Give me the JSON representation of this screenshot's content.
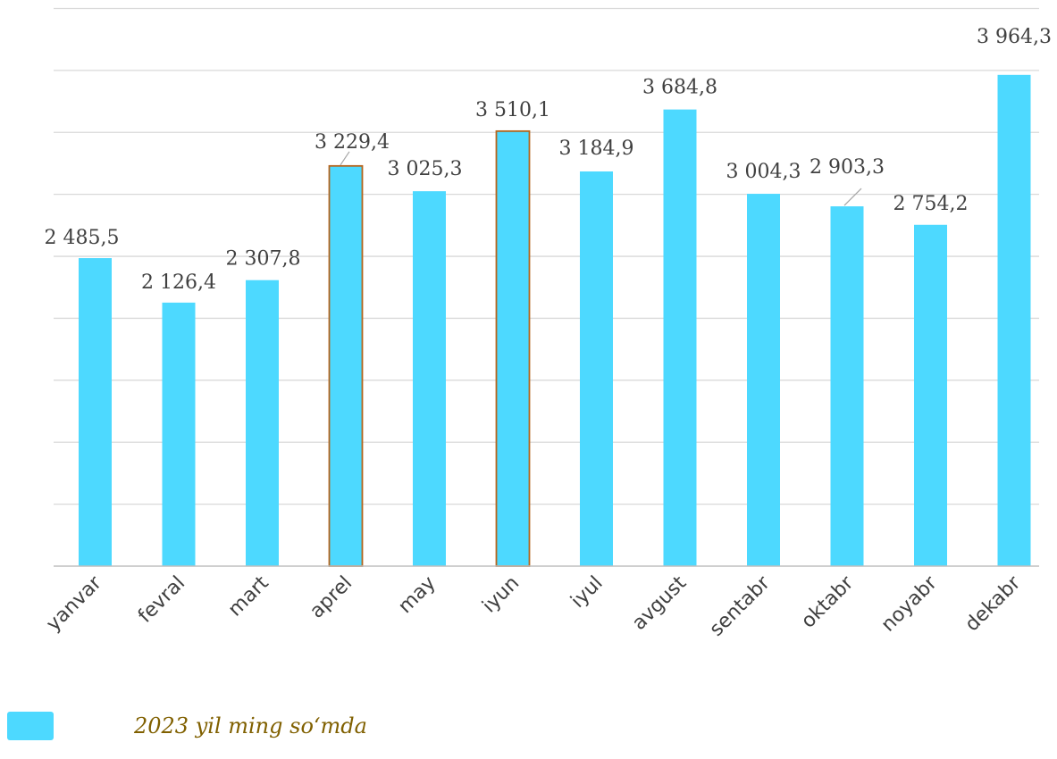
{
  "chart_data": {
    "type": "bar",
    "categories": [
      "yanvar",
      "fevral",
      "mart",
      "aprel",
      "may",
      "iyun",
      "iyul",
      "avgust",
      "sentabr",
      "oktabr",
      "noyabr",
      "dekabr"
    ],
    "series": [
      {
        "name": "2023 yil ming so‘mda",
        "values": [
          2485.5,
          2126.4,
          2307.8,
          3229.4,
          3025.3,
          3510.1,
          3184.9,
          3684.8,
          3004.3,
          2903.3,
          2754.2,
          3964.3
        ]
      }
    ],
    "value_labels": [
      "2 485,5",
      "2 126,4",
      "2 307,8",
      "3 229,4",
      "3 025,3",
      "3 510,1",
      "3 184,9",
      "3 684,8",
      "3 004,3",
      "2 903,3",
      "2 754,2",
      "3 964,3"
    ],
    "highlighted": [
      "aprel",
      "iyun"
    ],
    "ylim": [
      0,
      4500
    ],
    "gridlines_every": 500,
    "grid": true,
    "legend_position": "bottom-left",
    "title": "",
    "xlabel": "",
    "ylabel": ""
  },
  "colors": {
    "bar": "#4dd9ff",
    "highlight_border": "#b5651d",
    "grid": "#d9d9d9",
    "axis": "#bfbfbf",
    "label": "#404040",
    "legend_text": "#806000"
  }
}
